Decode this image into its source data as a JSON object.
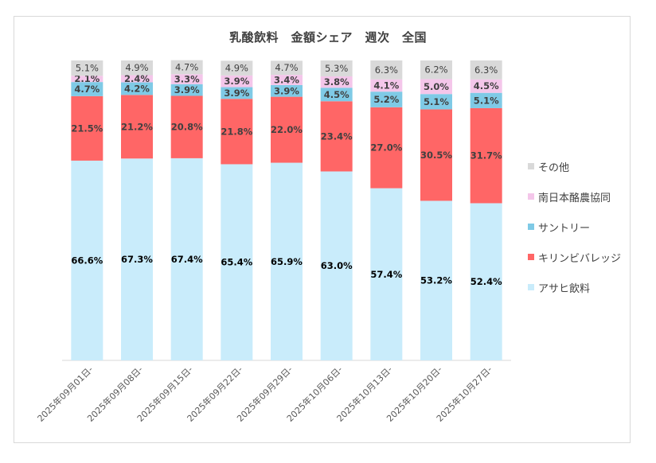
{
  "chart_data": {
    "type": "bar",
    "stacked": true,
    "percent": true,
    "title": "乳酸飲料　金額シェア　週次　全国",
    "xlabel": "",
    "ylabel": "",
    "ylim": [
      0,
      100
    ],
    "grid": false,
    "legend_position": "right",
    "categories": [
      "2025年09月01日-",
      "2025年09月08日-",
      "2025年09月15日-",
      "2025年09月22日-",
      "2025年09月29日-",
      "2025年10月06日-",
      "2025年10月13日-",
      "2025年10月20日-",
      "2025年10月27日-"
    ],
    "series": [
      {
        "name": "アサヒ飲料",
        "color": "#c9ecfb",
        "label_color": "#000000",
        "values": [
          66.6,
          67.3,
          67.4,
          65.4,
          65.9,
          63.0,
          57.4,
          53.2,
          52.4
        ]
      },
      {
        "name": "キリンビバレッジ",
        "color": "#ff6666",
        "label_color": "#404040",
        "values": [
          21.5,
          21.2,
          20.8,
          21.8,
          22.0,
          23.4,
          27.0,
          30.5,
          31.7
        ]
      },
      {
        "name": "サントリー",
        "color": "#7fcae6",
        "label_color": "#404040",
        "values": [
          4.7,
          4.2,
          3.9,
          3.9,
          3.9,
          4.5,
          5.2,
          5.1,
          5.1
        ]
      },
      {
        "name": "南日本酪農協同",
        "color": "#f4c6ea",
        "label_color": "#404040",
        "values": [
          2.1,
          2.4,
          3.3,
          3.9,
          3.4,
          3.8,
          4.1,
          5.0,
          4.5
        ]
      },
      {
        "name": "その他",
        "color": "#d9d9d9",
        "label_color": "#404040",
        "values": [
          5.1,
          4.9,
          4.7,
          4.9,
          4.7,
          5.3,
          6.3,
          6.2,
          6.3
        ]
      }
    ]
  },
  "legend_items": [
    {
      "name": "その他",
      "color": "#d9d9d9"
    },
    {
      "name": "南日本酪農協同",
      "color": "#f4c6ea"
    },
    {
      "name": "サントリー",
      "color": "#7fcae6"
    },
    {
      "name": "キリンビバレッジ",
      "color": "#ff6666"
    },
    {
      "name": "アサヒ飲料",
      "color": "#c9ecfb"
    }
  ]
}
